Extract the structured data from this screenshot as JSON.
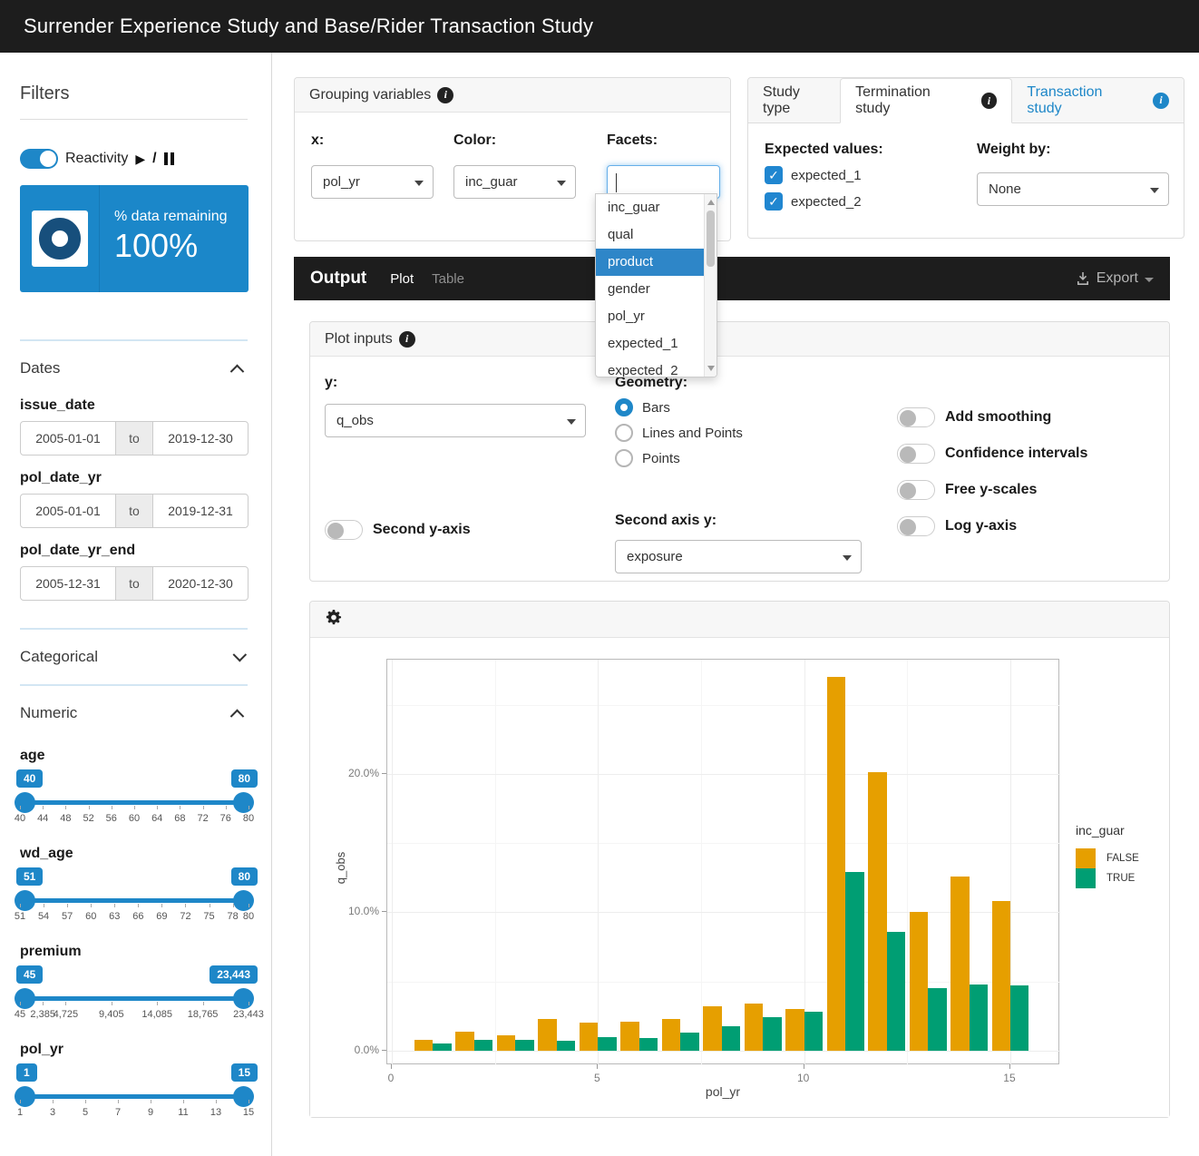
{
  "app": {
    "title": "Surrender Experience Study and Base/Rider Transaction Study"
  },
  "colors": {
    "accent_blue": "#1e87c8",
    "valuebox_blue": "#1b87c9",
    "donut_navy": "#174f7c",
    "header_dark": "#1d1d1d",
    "bar_false": "#E69F00",
    "bar_true": "#009E73",
    "dropdown_highlight": "#2e86c8"
  },
  "sidebar": {
    "filters_title": "Filters",
    "reactivity": {
      "label": "Reactivity",
      "state": "on",
      "icons": [
        "play-icon",
        "pause-icon"
      ]
    },
    "value_box": {
      "label": "% data remaining",
      "value": "100%",
      "icon": "donut-icon"
    },
    "dates": {
      "title": "Dates",
      "expanded": true,
      "fields": [
        {
          "name": "issue_date",
          "from": "2005-01-01",
          "to_label": "to",
          "to": "2019-12-30"
        },
        {
          "name": "pol_date_yr",
          "from": "2005-01-01",
          "to_label": "to",
          "to": "2019-12-31"
        },
        {
          "name": "pol_date_yr_end",
          "from": "2005-12-31",
          "to_label": "to",
          "to": "2020-12-30"
        }
      ]
    },
    "categorical": {
      "title": "Categorical",
      "expanded": false
    },
    "numeric": {
      "title": "Numeric",
      "expanded": true,
      "sliders": [
        {
          "name": "age",
          "from": "40",
          "to": "80",
          "min": 40,
          "max": 80,
          "ticks": [
            {
              "v": 40,
              "label": "40"
            },
            {
              "v": 44,
              "label": "44"
            },
            {
              "v": 48,
              "label": "48"
            },
            {
              "v": 52,
              "label": "52"
            },
            {
              "v": 56,
              "label": "56"
            },
            {
              "v": 60,
              "label": "60"
            },
            {
              "v": 64,
              "label": "64"
            },
            {
              "v": 68,
              "label": "68"
            },
            {
              "v": 72,
              "label": "72"
            },
            {
              "v": 76,
              "label": "76"
            },
            {
              "v": 80,
              "label": "80"
            }
          ]
        },
        {
          "name": "wd_age",
          "from": "51",
          "to": "80",
          "min": 51,
          "max": 80,
          "ticks": [
            {
              "v": 51,
              "label": "51"
            },
            {
              "v": 54,
              "label": "54"
            },
            {
              "v": 57,
              "label": "57"
            },
            {
              "v": 60,
              "label": "60"
            },
            {
              "v": 63,
              "label": "63"
            },
            {
              "v": 66,
              "label": "66"
            },
            {
              "v": 69,
              "label": "69"
            },
            {
              "v": 72,
              "label": "72"
            },
            {
              "v": 75,
              "label": "75"
            },
            {
              "v": 78,
              "label": "78"
            },
            {
              "v": 80,
              "label": "80"
            }
          ]
        },
        {
          "name": "premium",
          "from": "45",
          "to": "23,443",
          "min": 45,
          "max": 23443,
          "ticks": [
            {
              "v": 45,
              "label": "45"
            },
            {
              "v": 2385,
              "label": "2,385"
            },
            {
              "v": 4725,
              "label": "4,725"
            },
            {
              "v": 9405,
              "label": "9,405"
            },
            {
              "v": 14085,
              "label": "14,085"
            },
            {
              "v": 18765,
              "label": "18,765"
            },
            {
              "v": 23443,
              "label": "23,443"
            }
          ]
        },
        {
          "name": "pol_yr",
          "from": "1",
          "to": "15",
          "min": 1,
          "max": 15,
          "ticks": [
            {
              "v": 1,
              "label": "1"
            },
            {
              "v": 3,
              "label": "3"
            },
            {
              "v": 5,
              "label": "5"
            },
            {
              "v": 7,
              "label": "7"
            },
            {
              "v": 9,
              "label": "9"
            },
            {
              "v": 11,
              "label": "11"
            },
            {
              "v": 13,
              "label": "13"
            },
            {
              "v": 15,
              "label": "15"
            }
          ]
        }
      ]
    }
  },
  "grouping": {
    "title": "Grouping variables",
    "x_label": "x:",
    "x_value": "pol_yr",
    "color_label": "Color:",
    "color_value": "inc_guar",
    "facets_label": "Facets:",
    "facets_value": "",
    "dropdown": {
      "items": [
        "inc_guar",
        "qual",
        "product",
        "gender",
        "pol_yr",
        "expected_1",
        "expected_2"
      ],
      "highlighted": "product"
    }
  },
  "study_type": {
    "label": "Study type",
    "tabs": [
      {
        "label": "Termination study",
        "active": true
      },
      {
        "label": "Transaction study",
        "active": false
      }
    ],
    "expected_values_label": "Expected values:",
    "checkboxes": [
      {
        "label": "expected_1",
        "checked": true
      },
      {
        "label": "expected_2",
        "checked": true
      }
    ],
    "weight_by_label": "Weight by:",
    "weight_by_value": "None"
  },
  "output_bar": {
    "title": "Output",
    "tabs": [
      {
        "label": "Plot",
        "active": true
      },
      {
        "label": "Table",
        "active": false
      }
    ],
    "export_label": "Export",
    "export_icon": "download-icon"
  },
  "plot_inputs": {
    "title": "Plot inputs",
    "y_label": "y:",
    "y_value": "q_obs",
    "geometry_label": "Geometry:",
    "geometry_options": [
      {
        "label": "Bars",
        "selected": true
      },
      {
        "label": "Lines and Points",
        "selected": false
      },
      {
        "label": "Points",
        "selected": false
      }
    ],
    "second_y_axis_label": "Second y-axis",
    "second_y_axis_on": false,
    "second_axis_y_label": "Second axis y:",
    "second_axis_y_value": "exposure",
    "toggles": [
      {
        "label": "Add smoothing",
        "on": false
      },
      {
        "label": "Confidence intervals",
        "on": false
      },
      {
        "label": "Free y-scales",
        "on": false
      },
      {
        "label": "Log y-axis",
        "on": false
      }
    ]
  },
  "chart_data": {
    "type": "bar",
    "title": "",
    "xlabel": "pol_yr",
    "ylabel": "q_obs",
    "legend_title": "inc_guar",
    "legend_position": "right",
    "grid": true,
    "categories": [
      1,
      2,
      3,
      4,
      5,
      6,
      7,
      8,
      9,
      10,
      11,
      12,
      13,
      14,
      15
    ],
    "series": [
      {
        "name": "FALSE",
        "color": "#E69F00",
        "values": [
          0.8,
          1.4,
          1.1,
          2.3,
          2.0,
          2.1,
          2.3,
          3.2,
          3.4,
          3.0,
          27.0,
          20.1,
          10.0,
          12.6,
          10.8
        ]
      },
      {
        "name": "TRUE",
        "color": "#009E73",
        "values": [
          0.5,
          0.8,
          0.8,
          0.7,
          1.0,
          0.9,
          1.3,
          1.8,
          2.4,
          2.8,
          12.9,
          8.6,
          4.5,
          4.8,
          4.7
        ]
      }
    ],
    "y_ticks": [
      {
        "v": 0,
        "label": "0.0%"
      },
      {
        "v": 10,
        "label": "10.0%"
      },
      {
        "v": 20,
        "label": "20.0%"
      }
    ],
    "x_ticks": [
      {
        "v": 0,
        "label": "0"
      },
      {
        "v": 5,
        "label": "5"
      },
      {
        "v": 10,
        "label": "10"
      },
      {
        "v": 15,
        "label": "15"
      }
    ],
    "y_minor": [
      5,
      15,
      25
    ],
    "x_minor": [
      2.5,
      7.5,
      12.5
    ],
    "ylim": [
      -1.05,
      28.26
    ],
    "xlim": [
      -0.11,
      16.21
    ],
    "bar_dodge_width": 0.45
  }
}
